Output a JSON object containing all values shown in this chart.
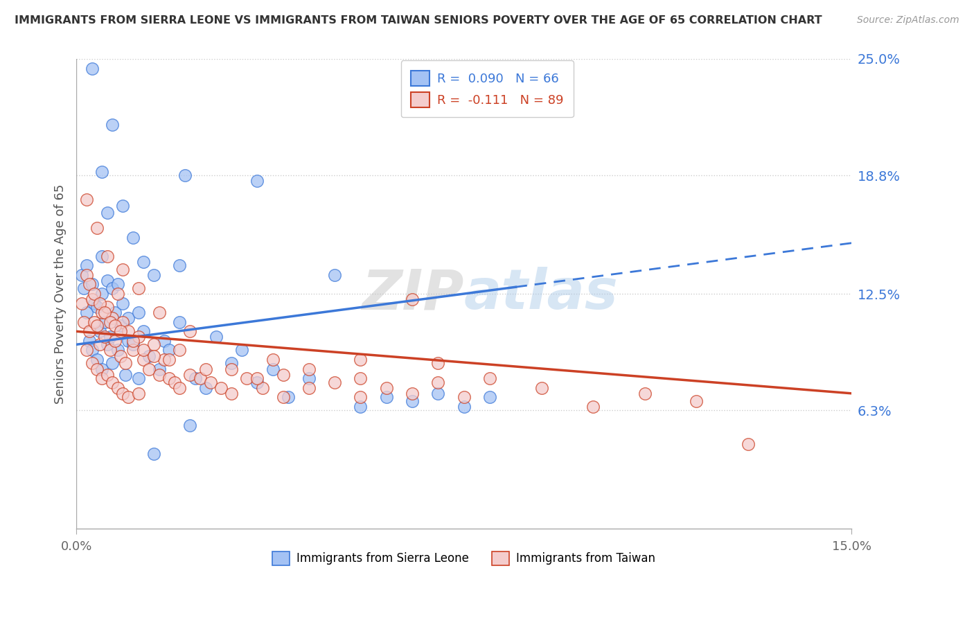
{
  "title": "IMMIGRANTS FROM SIERRA LEONE VS IMMIGRANTS FROM TAIWAN SENIORS POVERTY OVER THE AGE OF 65 CORRELATION CHART",
  "source": "Source: ZipAtlas.com",
  "ylabel": "Seniors Poverty Over the Age of 65",
  "xmin": 0.0,
  "xmax": 15.0,
  "ymin": 0.0,
  "ymax": 25.0,
  "yticks": [
    6.3,
    12.5,
    18.8,
    25.0
  ],
  "ytick_labels": [
    "6.3%",
    "12.5%",
    "18.8%",
    "25.0%"
  ],
  "color_sierra": "#a4c2f4",
  "color_taiwan": "#f4cccc",
  "color_sierra_line": "#3c78d8",
  "color_taiwan_line": "#cc4125",
  "watermark": "ZIPatlas",
  "background_color": "#ffffff",
  "sl_line_x0": 0.0,
  "sl_line_y0": 9.8,
  "sl_line_x1": 15.0,
  "sl_line_y1": 15.2,
  "sl_solid_end_x": 8.5,
  "tw_line_x0": 0.0,
  "tw_line_y0": 10.5,
  "tw_line_x1": 15.0,
  "tw_line_y1": 7.2,
  "sierra_leone_x": [
    0.1,
    0.15,
    0.2,
    0.2,
    0.25,
    0.3,
    0.3,
    0.35,
    0.4,
    0.4,
    0.45,
    0.5,
    0.5,
    0.5,
    0.55,
    0.6,
    0.6,
    0.65,
    0.7,
    0.7,
    0.75,
    0.8,
    0.8,
    0.85,
    0.9,
    0.95,
    1.0,
    1.0,
    1.1,
    1.2,
    1.2,
    1.3,
    1.4,
    1.5,
    1.6,
    1.7,
    1.8,
    2.0,
    2.1,
    2.3,
    2.5,
    2.7,
    3.0,
    3.2,
    3.5,
    3.8,
    4.1,
    4.5,
    5.0,
    5.5,
    6.0,
    6.5,
    7.0,
    7.5,
    8.0,
    0.3,
    0.5,
    0.6,
    0.7,
    0.9,
    1.1,
    1.3,
    2.0,
    3.5,
    1.5,
    2.2
  ],
  "sierra_leone_y": [
    13.5,
    12.8,
    14.0,
    11.5,
    10.0,
    13.0,
    9.5,
    12.0,
    11.8,
    9.0,
    10.5,
    12.5,
    8.5,
    14.5,
    11.0,
    13.2,
    9.8,
    10.2,
    12.8,
    8.8,
    11.5,
    13.0,
    9.5,
    10.8,
    12.0,
    8.2,
    11.2,
    10.0,
    9.8,
    11.5,
    8.0,
    10.5,
    9.2,
    13.5,
    8.5,
    10.0,
    9.5,
    11.0,
    18.8,
    8.0,
    7.5,
    10.2,
    8.8,
    9.5,
    7.8,
    8.5,
    7.0,
    8.0,
    13.5,
    6.5,
    7.0,
    6.8,
    7.2,
    6.5,
    7.0,
    24.5,
    19.0,
    16.8,
    21.5,
    17.2,
    15.5,
    14.2,
    14.0,
    18.5,
    4.0,
    5.5
  ],
  "taiwan_x": [
    0.1,
    0.15,
    0.2,
    0.2,
    0.25,
    0.3,
    0.3,
    0.35,
    0.4,
    0.4,
    0.45,
    0.5,
    0.5,
    0.55,
    0.6,
    0.6,
    0.65,
    0.7,
    0.7,
    0.75,
    0.8,
    0.8,
    0.85,
    0.9,
    0.9,
    0.95,
    1.0,
    1.0,
    1.1,
    1.2,
    1.2,
    1.3,
    1.4,
    1.5,
    1.6,
    1.7,
    1.8,
    1.9,
    2.0,
    2.0,
    2.2,
    2.4,
    2.6,
    2.8,
    3.0,
    3.0,
    3.3,
    3.6,
    4.0,
    4.0,
    4.5,
    5.0,
    5.5,
    5.5,
    6.0,
    6.5,
    7.0,
    7.5,
    8.0,
    9.0,
    10.0,
    11.0,
    12.0,
    13.0,
    0.25,
    0.35,
    0.45,
    0.55,
    0.65,
    0.75,
    0.85,
    1.1,
    1.3,
    1.5,
    1.8,
    2.5,
    3.5,
    4.5,
    5.5,
    7.0,
    0.2,
    0.4,
    0.6,
    0.9,
    1.2,
    1.6,
    2.2,
    3.8,
    6.5
  ],
  "taiwan_y": [
    12.0,
    11.0,
    13.5,
    9.5,
    10.5,
    12.2,
    8.8,
    11.0,
    10.8,
    8.5,
    9.8,
    11.5,
    8.0,
    10.2,
    11.8,
    8.2,
    9.5,
    11.2,
    7.8,
    10.0,
    12.5,
    7.5,
    9.2,
    11.0,
    7.2,
    8.8,
    10.5,
    7.0,
    9.5,
    10.2,
    7.2,
    9.0,
    8.5,
    9.8,
    8.2,
    9.0,
    8.0,
    7.8,
    9.5,
    7.5,
    8.2,
    8.0,
    7.8,
    7.5,
    8.5,
    7.2,
    8.0,
    7.5,
    8.2,
    7.0,
    7.5,
    7.8,
    7.0,
    8.0,
    7.5,
    7.2,
    7.8,
    7.0,
    8.0,
    7.5,
    6.5,
    7.2,
    6.8,
    4.5,
    13.0,
    12.5,
    12.0,
    11.5,
    11.0,
    10.8,
    10.5,
    10.0,
    9.5,
    9.2,
    9.0,
    8.5,
    8.0,
    8.5,
    9.0,
    8.8,
    17.5,
    16.0,
    14.5,
    13.8,
    12.8,
    11.5,
    10.5,
    9.0,
    12.2
  ]
}
